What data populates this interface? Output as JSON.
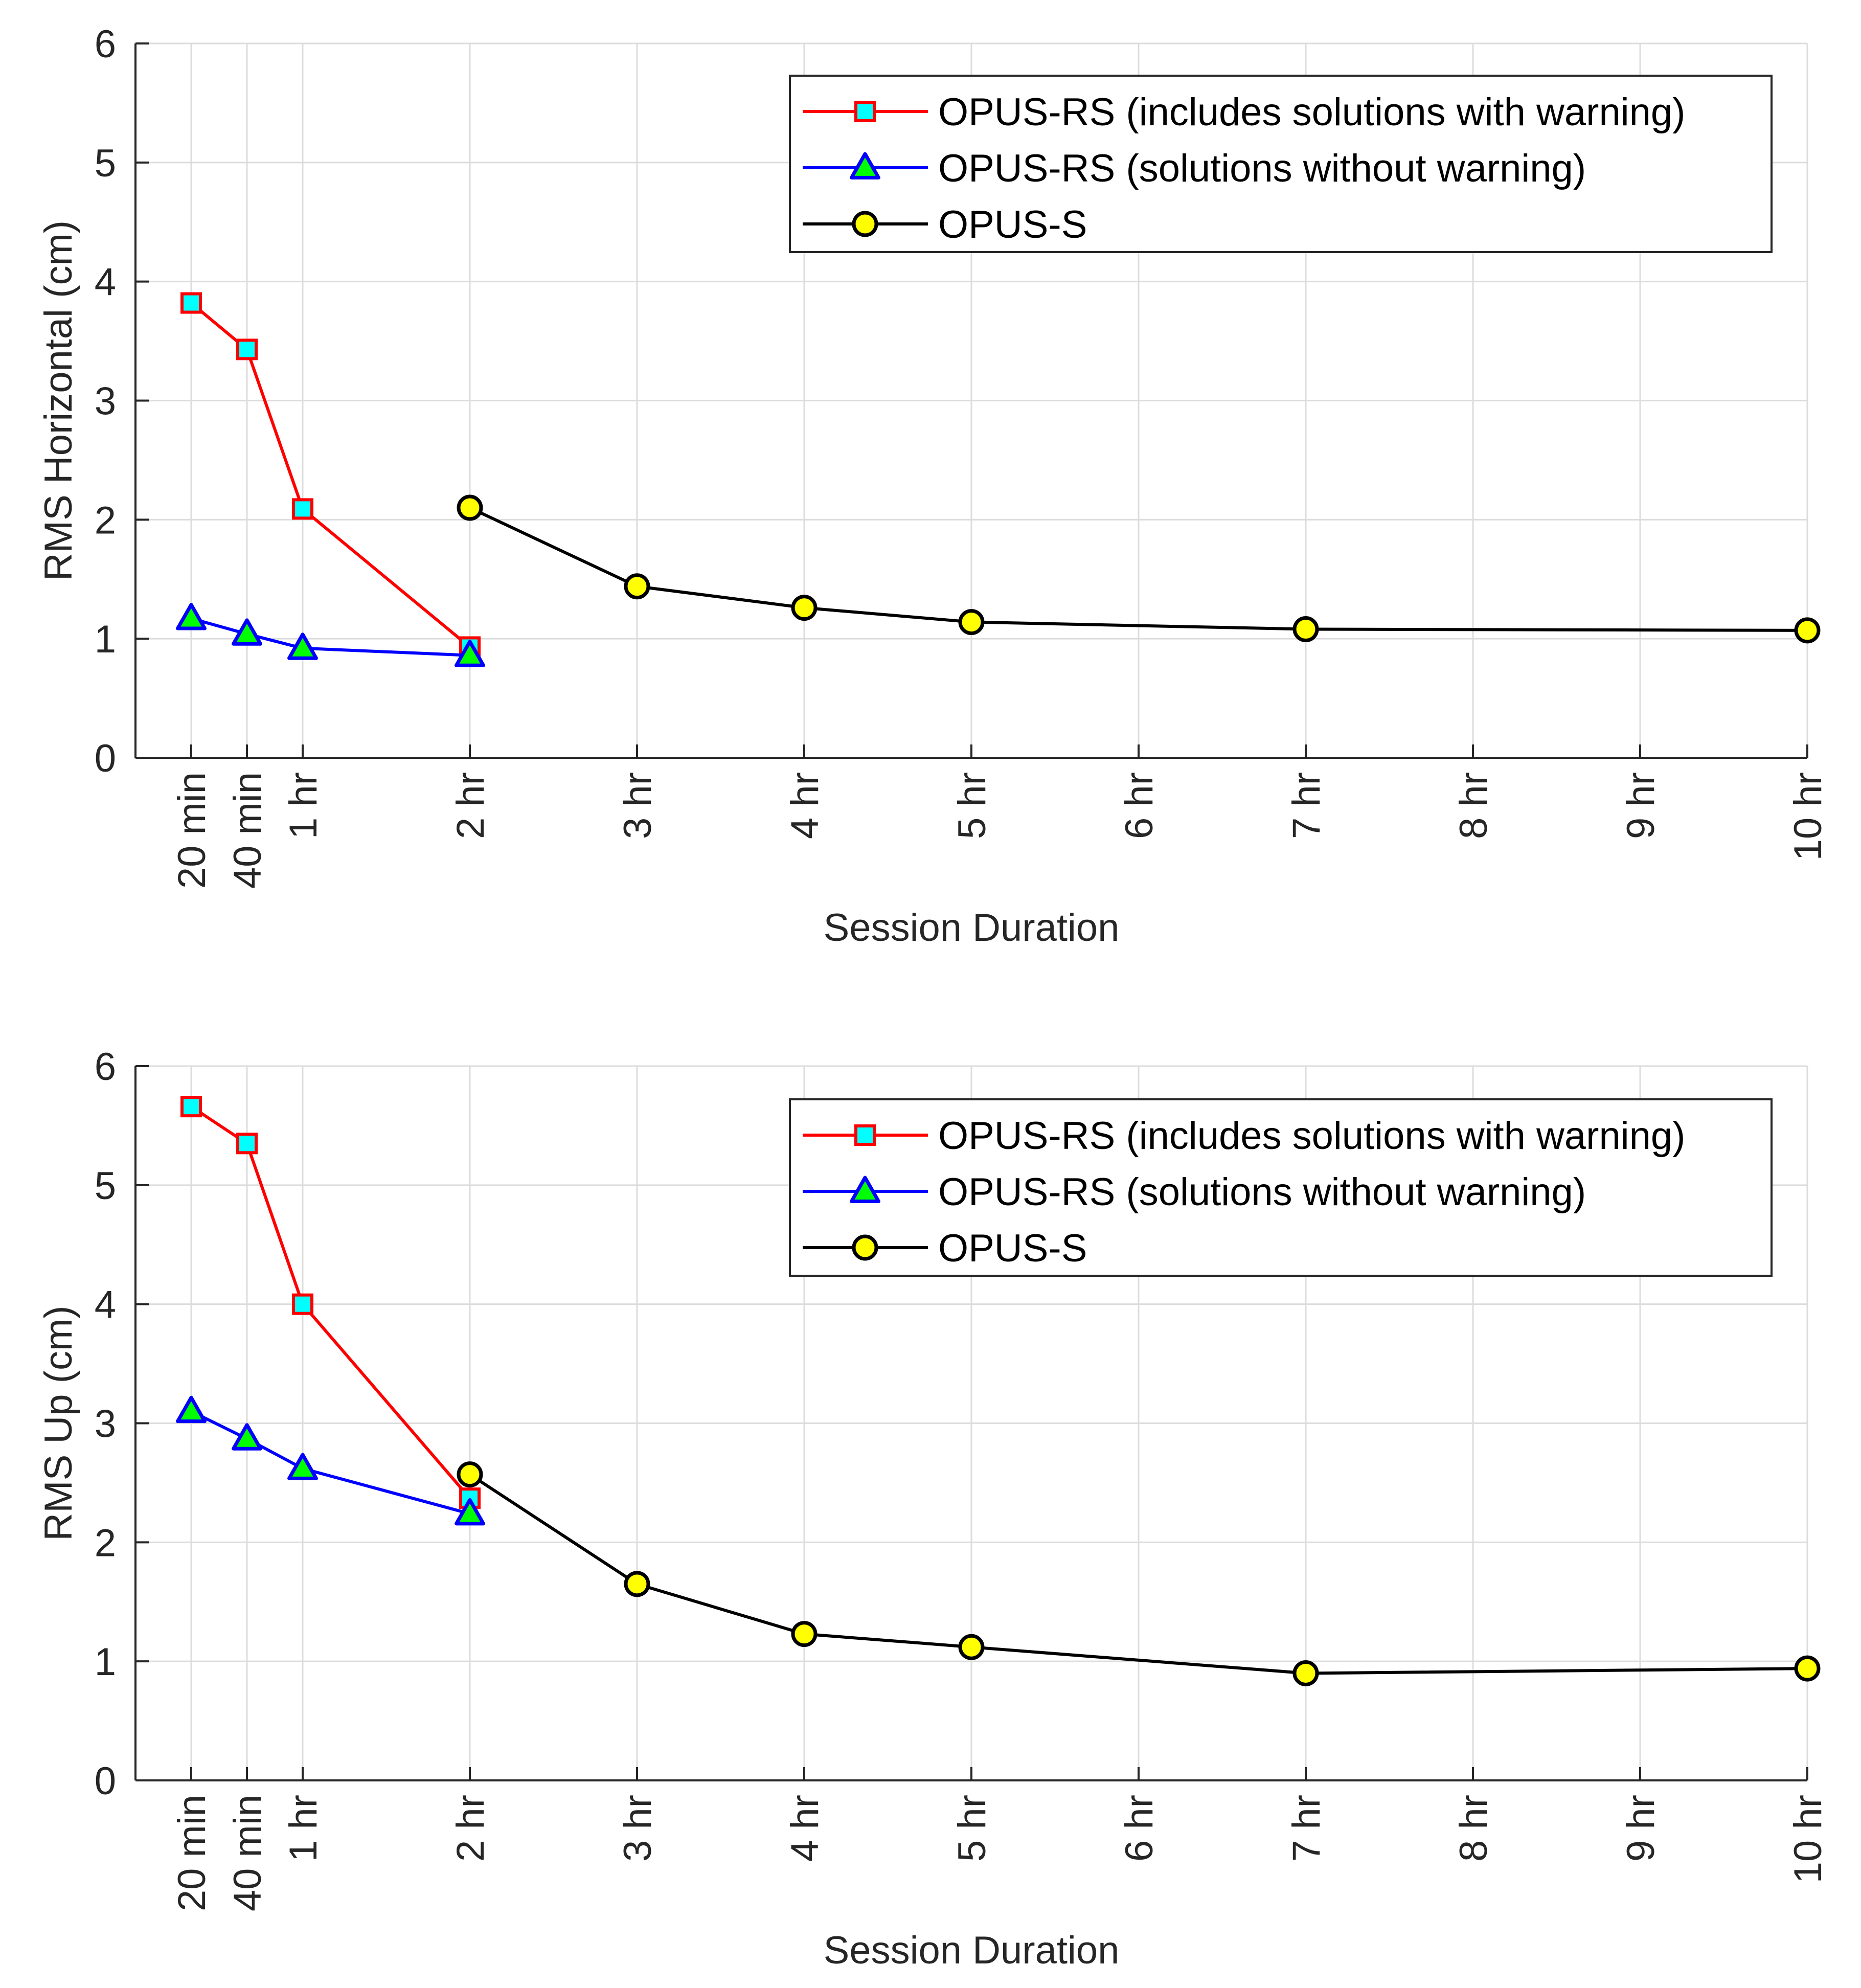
{
  "chart_data": [
    {
      "type": "line",
      "ylabel": "RMS Horizontal (cm)",
      "xlabel": "Session Duration",
      "ylim": [
        0,
        6
      ],
      "yticks": [
        0,
        1,
        2,
        3,
        4,
        5,
        6
      ],
      "xlim": [
        0,
        10
      ],
      "xticks": [
        {
          "value": 0.3333,
          "label": "20 min"
        },
        {
          "value": 0.6667,
          "label": "40 min"
        },
        {
          "value": 1,
          "label": "1 hr"
        },
        {
          "value": 2,
          "label": "2 hr"
        },
        {
          "value": 3,
          "label": "3 hr"
        },
        {
          "value": 4,
          "label": "4 hr"
        },
        {
          "value": 5,
          "label": "5 hr"
        },
        {
          "value": 6,
          "label": "6 hr"
        },
        {
          "value": 7,
          "label": "7 hr"
        },
        {
          "value": 8,
          "label": "8 hr"
        },
        {
          "value": 9,
          "label": "9 hr"
        },
        {
          "value": 10,
          "label": "10 hr"
        }
      ],
      "grid": true,
      "legend_position": "top-right",
      "series": [
        {
          "name": "OPUS-RS (includes solutions with warning)",
          "line_color": "#ff0000",
          "marker": "square",
          "marker_fill": "#00ffff",
          "marker_edge": "#ff0000",
          "x": [
            0.3333,
            0.6667,
            1,
            2
          ],
          "y": [
            3.82,
            3.43,
            2.09,
            0.93
          ]
        },
        {
          "name": "OPUS-RS (solutions without warning)",
          "line_color": "#0000ff",
          "marker": "triangle",
          "marker_fill": "#00ff00",
          "marker_edge": "#0000ff",
          "x": [
            0.3333,
            0.6667,
            1,
            2
          ],
          "y": [
            1.17,
            1.04,
            0.92,
            0.86
          ]
        },
        {
          "name": "OPUS-S",
          "line_color": "#000000",
          "marker": "circle",
          "marker_fill": "#ffff00",
          "marker_edge": "#000000",
          "x": [
            2,
            3,
            4,
            5,
            7,
            10
          ],
          "y": [
            2.1,
            1.44,
            1.26,
            1.14,
            1.08,
            1.07
          ]
        }
      ]
    },
    {
      "type": "line",
      "ylabel": "RMS Up (cm)",
      "xlabel": "Session Duration",
      "ylim": [
        0,
        6
      ],
      "yticks": [
        0,
        1,
        2,
        3,
        4,
        5,
        6
      ],
      "xlim": [
        0,
        10
      ],
      "xticks": [
        {
          "value": 0.3333,
          "label": "20 min"
        },
        {
          "value": 0.6667,
          "label": "40 min"
        },
        {
          "value": 1,
          "label": "1 hr"
        },
        {
          "value": 2,
          "label": "2 hr"
        },
        {
          "value": 3,
          "label": "3 hr"
        },
        {
          "value": 4,
          "label": "4 hr"
        },
        {
          "value": 5,
          "label": "5 hr"
        },
        {
          "value": 6,
          "label": "6 hr"
        },
        {
          "value": 7,
          "label": "7 hr"
        },
        {
          "value": 8,
          "label": "8 hr"
        },
        {
          "value": 9,
          "label": "9 hr"
        },
        {
          "value": 10,
          "label": "10 hr"
        }
      ],
      "grid": true,
      "legend_position": "top-right",
      "series": [
        {
          "name": "OPUS-RS (includes solutions with warning)",
          "line_color": "#ff0000",
          "marker": "square",
          "marker_fill": "#00ffff",
          "marker_edge": "#ff0000",
          "x": [
            0.3333,
            0.6667,
            1,
            2
          ],
          "y": [
            5.66,
            5.35,
            4.0,
            2.37
          ]
        },
        {
          "name": "OPUS-RS (solutions without warning)",
          "line_color": "#0000ff",
          "marker": "triangle",
          "marker_fill": "#00ff00",
          "marker_edge": "#0000ff",
          "x": [
            0.3333,
            0.6667,
            1,
            2
          ],
          "y": [
            3.1,
            2.87,
            2.62,
            2.24
          ]
        },
        {
          "name": "OPUS-S",
          "line_color": "#000000",
          "marker": "circle",
          "marker_fill": "#ffff00",
          "marker_edge": "#000000",
          "x": [
            2,
            3,
            4,
            5,
            7,
            10
          ],
          "y": [
            2.57,
            1.65,
            1.23,
            1.12,
            0.9,
            0.94
          ]
        }
      ]
    }
  ]
}
